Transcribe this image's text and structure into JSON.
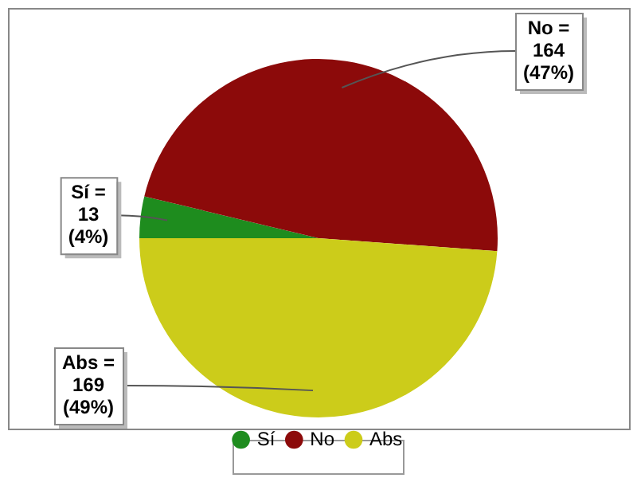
{
  "chart_data": {
    "type": "pie",
    "categories": [
      "Sí",
      "No",
      "Abs"
    ],
    "values": [
      13,
      164,
      169
    ],
    "colors": [
      "#1e8c1e",
      "#8c0a0a",
      "#cccc1a"
    ],
    "value_labels": [
      "Sí =\n13\n(4%)",
      "No =\n164\n(47%)",
      "Abs =\n169\n(49%)"
    ],
    "legend": "bottom"
  }
}
